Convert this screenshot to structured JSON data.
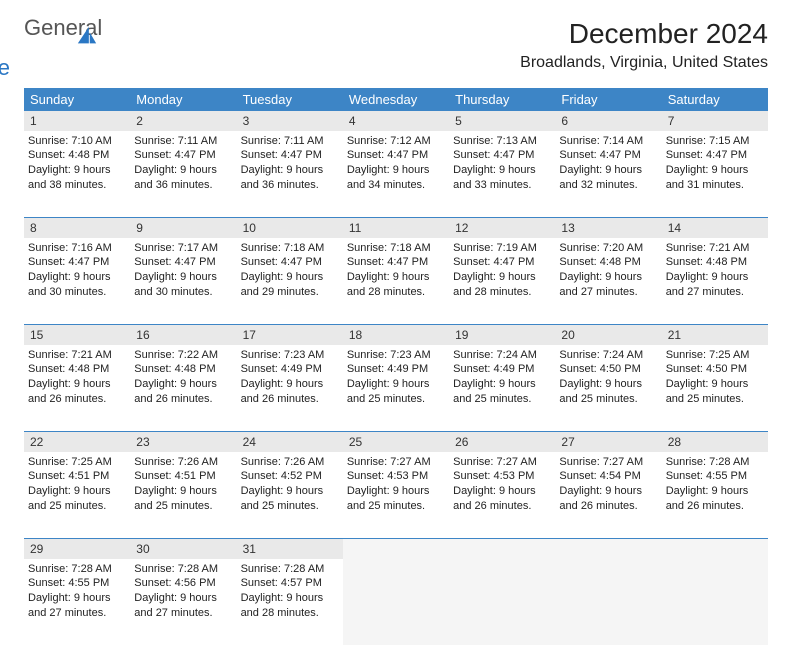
{
  "logo": {
    "word1": "General",
    "word2": "Blue",
    "shape_color": "#2a77c4"
  },
  "title": "December 2024",
  "location": "Broadlands, Virginia, United States",
  "header_bg": "#3d85c6",
  "daynum_bg": "#e9e9e9",
  "border_color": "#3d85c6",
  "weekdays": [
    "Sunday",
    "Monday",
    "Tuesday",
    "Wednesday",
    "Thursday",
    "Friday",
    "Saturday"
  ],
  "weeks": [
    [
      {
        "n": "1",
        "sr": "7:10 AM",
        "ss": "4:48 PM",
        "dl": "9 hours and 38 minutes."
      },
      {
        "n": "2",
        "sr": "7:11 AM",
        "ss": "4:47 PM",
        "dl": "9 hours and 36 minutes."
      },
      {
        "n": "3",
        "sr": "7:11 AM",
        "ss": "4:47 PM",
        "dl": "9 hours and 36 minutes."
      },
      {
        "n": "4",
        "sr": "7:12 AM",
        "ss": "4:47 PM",
        "dl": "9 hours and 34 minutes."
      },
      {
        "n": "5",
        "sr": "7:13 AM",
        "ss": "4:47 PM",
        "dl": "9 hours and 33 minutes."
      },
      {
        "n": "6",
        "sr": "7:14 AM",
        "ss": "4:47 PM",
        "dl": "9 hours and 32 minutes."
      },
      {
        "n": "7",
        "sr": "7:15 AM",
        "ss": "4:47 PM",
        "dl": "9 hours and 31 minutes."
      }
    ],
    [
      {
        "n": "8",
        "sr": "7:16 AM",
        "ss": "4:47 PM",
        "dl": "9 hours and 30 minutes."
      },
      {
        "n": "9",
        "sr": "7:17 AM",
        "ss": "4:47 PM",
        "dl": "9 hours and 30 minutes."
      },
      {
        "n": "10",
        "sr": "7:18 AM",
        "ss": "4:47 PM",
        "dl": "9 hours and 29 minutes."
      },
      {
        "n": "11",
        "sr": "7:18 AM",
        "ss": "4:47 PM",
        "dl": "9 hours and 28 minutes."
      },
      {
        "n": "12",
        "sr": "7:19 AM",
        "ss": "4:47 PM",
        "dl": "9 hours and 28 minutes."
      },
      {
        "n": "13",
        "sr": "7:20 AM",
        "ss": "4:48 PM",
        "dl": "9 hours and 27 minutes."
      },
      {
        "n": "14",
        "sr": "7:21 AM",
        "ss": "4:48 PM",
        "dl": "9 hours and 27 minutes."
      }
    ],
    [
      {
        "n": "15",
        "sr": "7:21 AM",
        "ss": "4:48 PM",
        "dl": "9 hours and 26 minutes."
      },
      {
        "n": "16",
        "sr": "7:22 AM",
        "ss": "4:48 PM",
        "dl": "9 hours and 26 minutes."
      },
      {
        "n": "17",
        "sr": "7:23 AM",
        "ss": "4:49 PM",
        "dl": "9 hours and 26 minutes."
      },
      {
        "n": "18",
        "sr": "7:23 AM",
        "ss": "4:49 PM",
        "dl": "9 hours and 25 minutes."
      },
      {
        "n": "19",
        "sr": "7:24 AM",
        "ss": "4:49 PM",
        "dl": "9 hours and 25 minutes."
      },
      {
        "n": "20",
        "sr": "7:24 AM",
        "ss": "4:50 PM",
        "dl": "9 hours and 25 minutes."
      },
      {
        "n": "21",
        "sr": "7:25 AM",
        "ss": "4:50 PM",
        "dl": "9 hours and 25 minutes."
      }
    ],
    [
      {
        "n": "22",
        "sr": "7:25 AM",
        "ss": "4:51 PM",
        "dl": "9 hours and 25 minutes."
      },
      {
        "n": "23",
        "sr": "7:26 AM",
        "ss": "4:51 PM",
        "dl": "9 hours and 25 minutes."
      },
      {
        "n": "24",
        "sr": "7:26 AM",
        "ss": "4:52 PM",
        "dl": "9 hours and 25 minutes."
      },
      {
        "n": "25",
        "sr": "7:27 AM",
        "ss": "4:53 PM",
        "dl": "9 hours and 25 minutes."
      },
      {
        "n": "26",
        "sr": "7:27 AM",
        "ss": "4:53 PM",
        "dl": "9 hours and 26 minutes."
      },
      {
        "n": "27",
        "sr": "7:27 AM",
        "ss": "4:54 PM",
        "dl": "9 hours and 26 minutes."
      },
      {
        "n": "28",
        "sr": "7:28 AM",
        "ss": "4:55 PM",
        "dl": "9 hours and 26 minutes."
      }
    ],
    [
      {
        "n": "29",
        "sr": "7:28 AM",
        "ss": "4:55 PM",
        "dl": "9 hours and 27 minutes."
      },
      {
        "n": "30",
        "sr": "7:28 AM",
        "ss": "4:56 PM",
        "dl": "9 hours and 27 minutes."
      },
      {
        "n": "31",
        "sr": "7:28 AM",
        "ss": "4:57 PM",
        "dl": "9 hours and 28 minutes."
      },
      null,
      null,
      null,
      null
    ]
  ],
  "labels": {
    "sunrise": "Sunrise:",
    "sunset": "Sunset:",
    "daylight": "Daylight:"
  }
}
